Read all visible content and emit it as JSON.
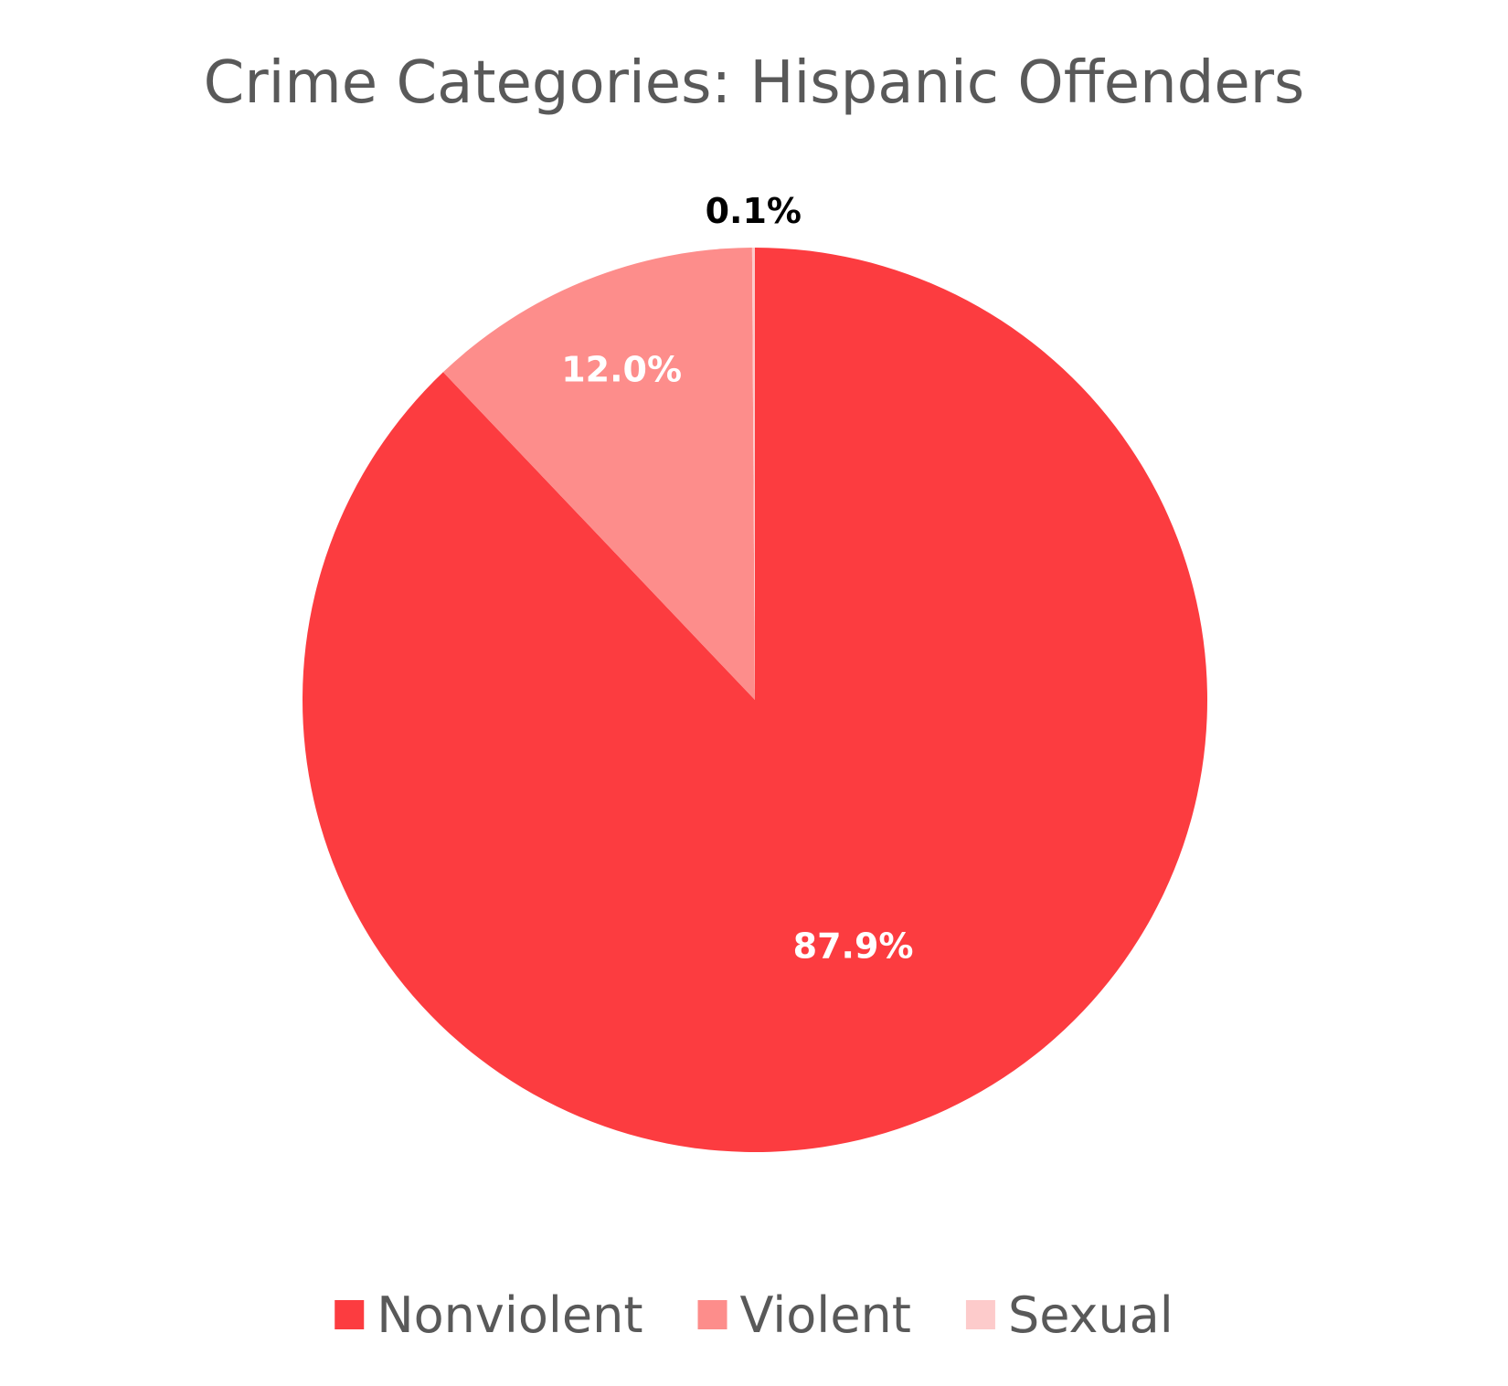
{
  "chart_data": {
    "type": "pie",
    "title": "Crime Categories: Hispanic Offenders",
    "categories": [
      "Nonviolent",
      "Violent",
      "Sexual"
    ],
    "values": [
      87.9,
      12.0,
      0.1
    ],
    "data_labels": [
      "87.9%",
      "12.0%",
      "0.1%"
    ],
    "colors": [
      "#fc3c40",
      "#fd8d8b",
      "#fdcbcb"
    ],
    "label_colors": [
      "#ffffff",
      "#ffffff",
      "#000000"
    ],
    "start_angle_deg": 0,
    "direction": "clockwise",
    "legend": {
      "position": "bottom",
      "entries": [
        "Nonviolent",
        "Violent",
        "Sexual"
      ]
    }
  }
}
